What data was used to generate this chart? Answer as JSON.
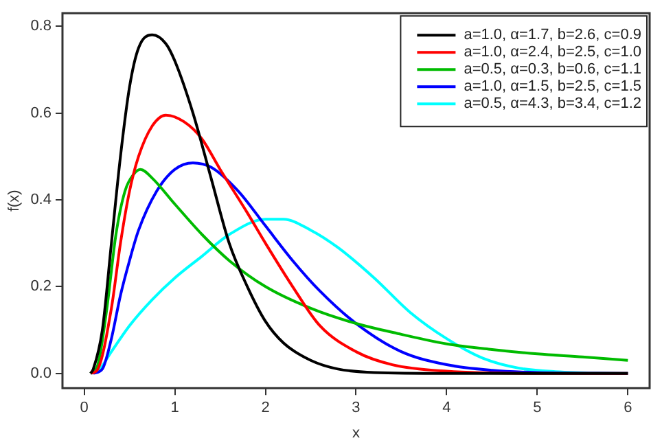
{
  "chart_data": {
    "type": "line",
    "xlabel": "x",
    "ylabel": "f(x)",
    "xlim": [
      -0.24,
      6.24
    ],
    "ylim": [
      -0.034,
      0.83
    ],
    "xticks": [
      0,
      1,
      2,
      3,
      4,
      5,
      6
    ],
    "yticks": [
      {
        "value": 0,
        "label": "0.0"
      },
      {
        "value": 0.2,
        "label": "0.2"
      },
      {
        "value": 0.4,
        "label": "0.4"
      },
      {
        "value": 0.6,
        "label": "0.6"
      },
      {
        "value": 0.8,
        "label": "0.8"
      }
    ],
    "grid": false,
    "legend": "top right",
    "marker": "none",
    "line_style": "solid",
    "series": [
      {
        "name": "a=1.0, α=1.7, b=2.6, c=0.9",
        "color": "#000000",
        "x": [
          0.07,
          0.1,
          0.2,
          0.3,
          0.4,
          0.5,
          0.6,
          0.75,
          0.9,
          1.0,
          1.2,
          1.4,
          1.6,
          1.8,
          2.0,
          2.2,
          2.5,
          2.8,
          3.2,
          4,
          6
        ],
        "values": [
          0,
          0.01,
          0.1,
          0.3,
          0.5,
          0.66,
          0.75,
          0.78,
          0.76,
          0.72,
          0.6,
          0.45,
          0.3,
          0.2,
          0.12,
          0.07,
          0.03,
          0.01,
          0.002,
          0,
          0
        ]
      },
      {
        "name": "a=1.0, α=2.4, b=2.5, c=1.0",
        "color": "#ff0000",
        "x": [
          0.07,
          0.15,
          0.3,
          0.4,
          0.5,
          0.6,
          0.75,
          0.9,
          1.1,
          1.3,
          1.5,
          1.8,
          2.0,
          2.3,
          2.6,
          3.0,
          3.4,
          4,
          5,
          6
        ],
        "values": [
          0,
          0.01,
          0.15,
          0.3,
          0.42,
          0.5,
          0.57,
          0.595,
          0.58,
          0.54,
          0.47,
          0.37,
          0.3,
          0.2,
          0.11,
          0.05,
          0.02,
          0.005,
          0,
          0
        ]
      },
      {
        "name": "a=0.5, α=0.3, b=0.6, c=1.1",
        "color": "#00bb00",
        "x": [
          0.07,
          0.15,
          0.25,
          0.35,
          0.45,
          0.55,
          0.62,
          0.75,
          1.0,
          1.3,
          1.6,
          2.0,
          2.5,
          3.0,
          3.5,
          4.0,
          4.5,
          5.0,
          5.5,
          6.0
        ],
        "values": [
          0,
          0.02,
          0.15,
          0.32,
          0.42,
          0.46,
          0.47,
          0.45,
          0.39,
          0.32,
          0.26,
          0.2,
          0.15,
          0.115,
          0.09,
          0.068,
          0.055,
          0.045,
          0.038,
          0.03
        ]
      },
      {
        "name": "a=1.0, α=1.5, b=2.5, c=1.5",
        "color": "#0000ff",
        "x": [
          0.1,
          0.2,
          0.3,
          0.4,
          0.5,
          0.6,
          0.8,
          1.0,
          1.2,
          1.4,
          1.7,
          2.0,
          2.3,
          2.6,
          3.0,
          3.5,
          4.0,
          4.5,
          5,
          6
        ],
        "values": [
          0,
          0.01,
          0.08,
          0.18,
          0.26,
          0.33,
          0.42,
          0.47,
          0.485,
          0.475,
          0.42,
          0.34,
          0.26,
          0.19,
          0.115,
          0.05,
          0.02,
          0.007,
          0.002,
          0
        ]
      },
      {
        "name": "a=0.5, α=4.3, b=3.4, c=1.2",
        "color": "#00ffff",
        "x": [
          0.07,
          0.15,
          0.3,
          0.5,
          0.75,
          1.0,
          1.3,
          1.6,
          2.0,
          2.2,
          2.5,
          2.8,
          3.2,
          3.6,
          4.0,
          4.4,
          4.8,
          5.2,
          6
        ],
        "values": [
          0,
          0.005,
          0.05,
          0.11,
          0.17,
          0.22,
          0.27,
          0.32,
          0.355,
          0.355,
          0.33,
          0.29,
          0.22,
          0.14,
          0.08,
          0.035,
          0.012,
          0.004,
          0
        ]
      }
    ]
  }
}
